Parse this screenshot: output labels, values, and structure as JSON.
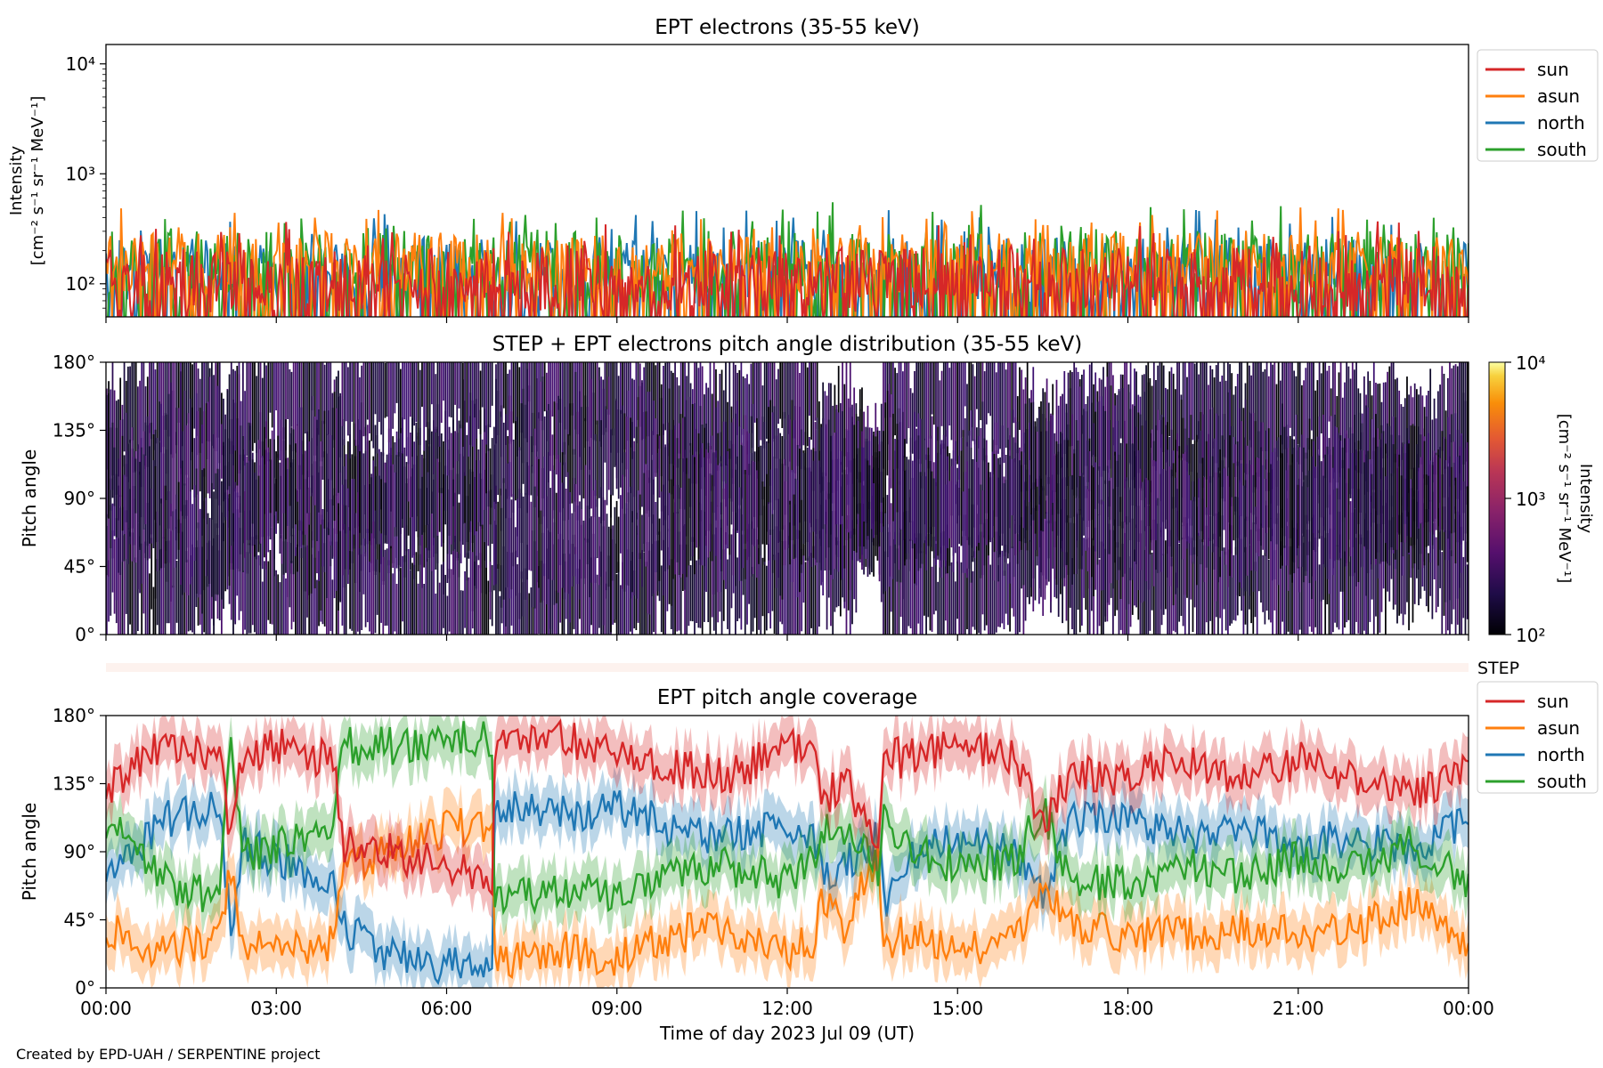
{
  "footer": {
    "credit": "Created by EPD-UAH / SERPENTINE project"
  },
  "colors": {
    "sun": "#d62728",
    "asun": "#ff7f0e",
    "north": "#1f77b4",
    "south": "#2ca02c"
  },
  "chart_data": [
    {
      "type": "line",
      "panel": "intensity",
      "title": "EPT electrons (35-55 keV)",
      "ylabel_lines": [
        "Intensity",
        "[cm⁻² s⁻¹ sr⁻¹ MeV⁻¹]"
      ],
      "yscale": "log",
      "ylim": [
        50,
        15000
      ],
      "yticks": [
        100,
        1000,
        10000
      ],
      "ytick_labels": [
        "10²",
        "10³",
        "10⁴"
      ],
      "xlim": [
        "00:00",
        "24:00"
      ],
      "legend_position": "outside-right",
      "legend": [
        "sun",
        "asun",
        "north",
        "south"
      ],
      "series": [
        {
          "name": "sun",
          "color": "#d62728",
          "typical": 100,
          "range": [
            50,
            380
          ]
        },
        {
          "name": "asun",
          "color": "#ff7f0e",
          "typical": 150,
          "range": [
            50,
            500
          ]
        },
        {
          "name": "north",
          "color": "#1f77b4",
          "typical": 120,
          "range": [
            50,
            480
          ]
        },
        {
          "name": "south",
          "color": "#2ca02c",
          "typical": 130,
          "range": [
            50,
            560
          ]
        }
      ]
    },
    {
      "type": "heatmap",
      "panel": "pitch-angle-distribution",
      "title": "STEP + EPT electrons pitch angle distribution (35-55 keV)",
      "ylabel": "Pitch angle",
      "ylim": [
        0,
        180
      ],
      "ytick_labels": [
        "0°",
        "45°",
        "90°",
        "135°",
        "180°"
      ],
      "colorbar": {
        "label": "Intensity [cm⁻² s⁻¹ sr⁻¹ MeV⁻¹]",
        "label_lines": [
          "Intensity",
          "[cm⁻² s⁻¹ sr⁻¹ MeV⁻¹]"
        ],
        "scale": "log",
        "range": [
          100,
          10000
        ],
        "tick_labels": [
          "10²",
          "10³",
          "10⁴"
        ]
      },
      "step_strip_label": "STEP"
    },
    {
      "type": "line",
      "panel": "pitch-angle-coverage",
      "title": "EPT pitch angle coverage",
      "ylabel": "Pitch angle",
      "xlabel": "Time of day 2023 Jul 09 (UT)",
      "ylim": [
        0,
        180
      ],
      "ytick_labels": [
        "0°",
        "45°",
        "90°",
        "135°",
        "180°"
      ],
      "x_tick_labels": [
        "00:00",
        "03:00",
        "06:00",
        "09:00",
        "12:00",
        "15:00",
        "18:00",
        "21:00",
        "00:00"
      ],
      "legend_position": "outside-right",
      "legend": [
        "sun",
        "asun",
        "north",
        "south"
      ],
      "series": [
        {
          "name": "sun",
          "color": "#d62728",
          "t": [
            0,
            1,
            2,
            2.2,
            2.4,
            3,
            4,
            4.2,
            5,
            6,
            6.8,
            6.85,
            8,
            9,
            10,
            11,
            12,
            12.5,
            12.6,
            13,
            13.6,
            13.7,
            14,
            15,
            16,
            16.5,
            17,
            18,
            19,
            20,
            21,
            22,
            23,
            24
          ],
          "y": [
            130,
            160,
            155,
            95,
            150,
            160,
            150,
            95,
            90,
            80,
            70,
            160,
            165,
            160,
            145,
            140,
            160,
            155,
            120,
            140,
            90,
            165,
            150,
            160,
            155,
            110,
            140,
            140,
            150,
            140,
            150,
            140,
            125,
            150
          ]
        },
        {
          "name": "asun",
          "color": "#ff7f0e",
          "t": [
            0,
            1,
            2,
            2.2,
            2.4,
            3,
            4,
            4.2,
            5,
            6,
            6.8,
            6.85,
            8,
            9,
            10,
            11,
            12,
            12.5,
            12.6,
            13,
            13.6,
            13.7,
            14,
            15,
            16,
            16.5,
            17,
            18,
            19,
            20,
            21,
            22,
            23,
            24
          ],
          "y": [
            40,
            25,
            35,
            80,
            30,
            25,
            30,
            80,
            90,
            105,
            110,
            15,
            25,
            20,
            35,
            40,
            25,
            30,
            60,
            40,
            90,
            20,
            35,
            25,
            30,
            70,
            40,
            35,
            35,
            40,
            35,
            40,
            55,
            30
          ]
        },
        {
          "name": "north",
          "color": "#1f77b4",
          "t": [
            0,
            1,
            2,
            2.2,
            2.4,
            3,
            4,
            4.2,
            5,
            6,
            6.8,
            6.85,
            8,
            9,
            10,
            11,
            12,
            12.5,
            12.6,
            13,
            13.6,
            13.7,
            14,
            15,
            16,
            16.5,
            17,
            18,
            19,
            20,
            21,
            22,
            23,
            24
          ],
          "y": [
            70,
            110,
            120,
            40,
            95,
            85,
            70,
            40,
            20,
            15,
            15,
            120,
            115,
            120,
            105,
            100,
            110,
            95,
            75,
            80,
            100,
            55,
            85,
            100,
            90,
            60,
            110,
            110,
            100,
            105,
            95,
            100,
            90,
            110
          ]
        },
        {
          "name": "south",
          "color": "#2ca02c",
          "t": [
            0,
            1,
            2,
            2.2,
            2.4,
            3,
            4,
            4.2,
            5,
            6,
            6.8,
            6.85,
            8,
            9,
            10,
            11,
            12,
            12.5,
            12.6,
            13,
            13.6,
            13.7,
            14,
            15,
            16,
            16.5,
            17,
            18,
            19,
            20,
            21,
            22,
            23,
            24
          ],
          "y": [
            110,
            70,
            60,
            160,
            85,
            95,
            110,
            160,
            160,
            165,
            165,
            60,
            65,
            60,
            75,
            80,
            70,
            85,
            105,
            100,
            80,
            125,
            95,
            80,
            85,
            120,
            70,
            70,
            80,
            75,
            85,
            80,
            95,
            70
          ]
        }
      ]
    }
  ]
}
